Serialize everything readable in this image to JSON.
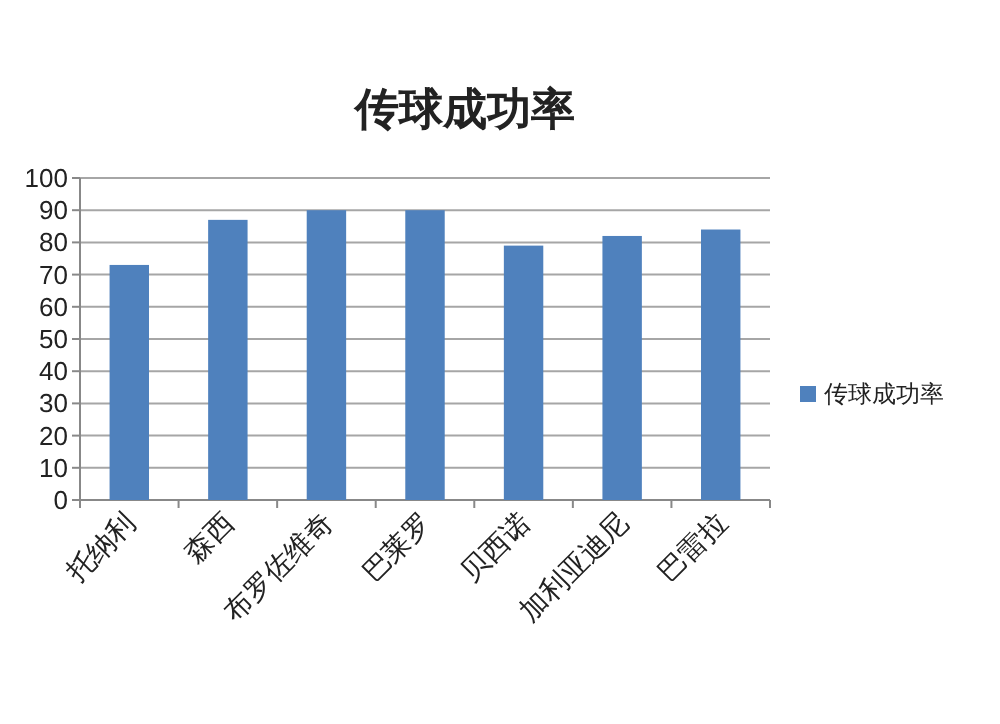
{
  "chart_data": {
    "type": "bar",
    "title": "传球成功率",
    "categories": [
      "托纳利",
      "森西",
      "布罗佐维奇",
      "巴莱罗",
      "贝西诺",
      "加利亚迪尼",
      "巴雷拉"
    ],
    "series": [
      {
        "name": "传球成功率",
        "color": "#4f81bd",
        "values": [
          73,
          87,
          90,
          90,
          79,
          82,
          84
        ]
      }
    ],
    "ylim": [
      0,
      100
    ],
    "yticks": [
      0,
      10,
      20,
      30,
      40,
      50,
      60,
      70,
      80,
      90,
      100
    ],
    "grid": "y",
    "legend": "right"
  }
}
